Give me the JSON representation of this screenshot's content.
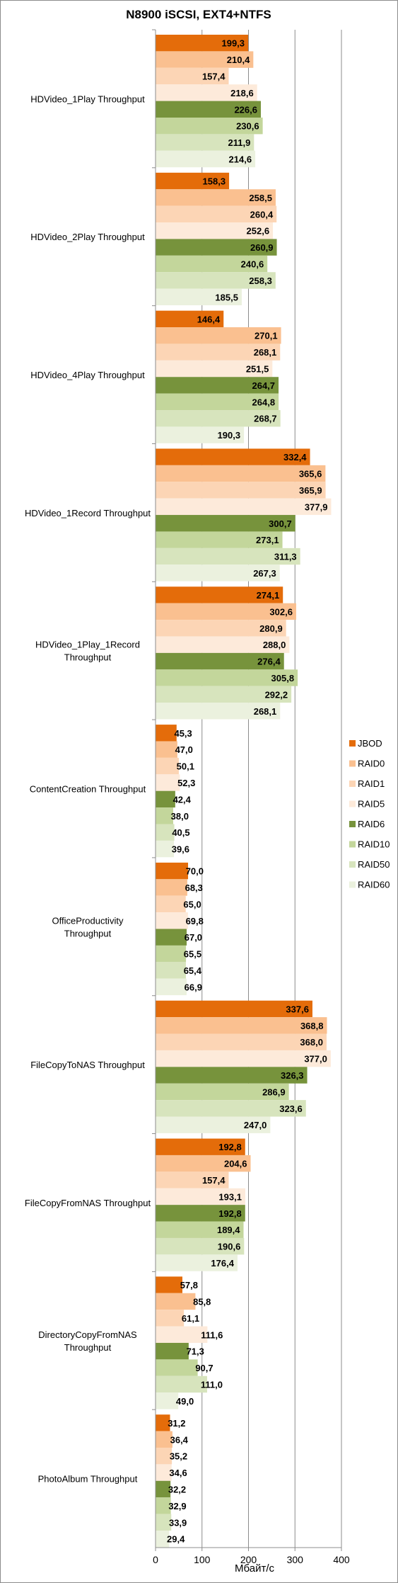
{
  "chart_data": {
    "type": "bar",
    "orientation": "horizontal",
    "title": "N8900 iSCSI, EXT4+NTFS",
    "xlabel": "Мбайт/с",
    "ylabel": "",
    "xlim": [
      0,
      400
    ],
    "x_ticks": [
      0,
      100,
      200,
      300,
      400
    ],
    "grid": true,
    "legend_position": "right",
    "categories": [
      "HDVideo_1Play Throughput",
      "HDVideo_2Play Throughput",
      "HDVideo_4Play Throughput",
      "HDVideo_1Record Throughput",
      "HDVideo_1Play_1Record Throughput",
      "ContentCreation Throughput",
      "OfficeProductivity Throughput",
      "FileCopyToNAS Throughput",
      "FileCopyFromNAS Throughput",
      "DirectoryCopyFromNAS Throughput",
      "PhotoAlbum Throughput"
    ],
    "series": [
      {
        "name": "JBOD",
        "color": "#e46c0a",
        "values": [
          199.3,
          158.3,
          146.4,
          332.4,
          274.1,
          45.3,
          70.0,
          337.6,
          192.8,
          57.8,
          31.2
        ],
        "labels": [
          "199,3",
          "158,3",
          "146,4",
          "332,4",
          "274,1",
          "45,3",
          "70,0",
          "337,6",
          "192,8",
          "57,8",
          "31,2"
        ]
      },
      {
        "name": "RAID0",
        "color": "#fac090",
        "values": [
          210.4,
          258.5,
          270.1,
          365.6,
          302.6,
          47.0,
          68.3,
          368.8,
          204.6,
          85.8,
          36.4
        ],
        "labels": [
          "210,4",
          "258,5",
          "270,1",
          "365,6",
          "302,6",
          "47,0",
          "68,3",
          "368,8",
          "204,6",
          "85,8",
          "36,4"
        ]
      },
      {
        "name": "RAID1",
        "color": "#fcd5b5",
        "values": [
          157.4,
          260.4,
          268.1,
          365.9,
          280.9,
          50.1,
          65.0,
          368.0,
          157.4,
          61.1,
          35.2
        ],
        "labels": [
          "157,4",
          "260,4",
          "268,1",
          "365,9",
          "280,9",
          "50,1",
          "65,0",
          "368,0",
          "157,4",
          "61,1",
          "35,2"
        ]
      },
      {
        "name": "RAID5",
        "color": "#fdeada",
        "values": [
          218.6,
          252.6,
          251.5,
          377.9,
          288.0,
          52.3,
          69.8,
          377.0,
          193.1,
          111.6,
          34.6
        ],
        "labels": [
          "218,6",
          "252,6",
          "251,5",
          "377,9",
          "288,0",
          "52,3",
          "69,8",
          "377,0",
          "193,1",
          "111,6",
          "34,6"
        ]
      },
      {
        "name": "RAID6",
        "color": "#77933c",
        "values": [
          226.6,
          260.9,
          264.7,
          300.7,
          276.4,
          42.4,
          67.0,
          326.3,
          192.8,
          71.3,
          32.2
        ],
        "labels": [
          "226,6",
          "260,9",
          "264,7",
          "300,7",
          "276,4",
          "42,4",
          "67,0",
          "326,3",
          "192,8",
          "71,3",
          "32,2"
        ]
      },
      {
        "name": "RAID10",
        "color": "#c3d69b",
        "values": [
          230.6,
          240.6,
          264.8,
          273.1,
          305.8,
          38.0,
          65.5,
          286.9,
          189.4,
          90.7,
          32.9
        ],
        "labels": [
          "230,6",
          "240,6",
          "264,8",
          "273,1",
          "305,8",
          "38,0",
          "65,5",
          "286,9",
          "189,4",
          "90,7",
          "32,9"
        ]
      },
      {
        "name": "RAID50",
        "color": "#d7e4bd",
        "values": [
          211.9,
          258.3,
          268.7,
          311.3,
          292.2,
          40.5,
          65.4,
          323.6,
          190.6,
          111.0,
          33.9
        ],
        "labels": [
          "211,9",
          "258,3",
          "268,7",
          "311,3",
          "292,2",
          "40,5",
          "65,4",
          "323,6",
          "190,6",
          "111,0",
          "33,9"
        ]
      },
      {
        "name": "RAID60",
        "color": "#ebf1de",
        "values": [
          214.6,
          185.5,
          190.3,
          267.3,
          268.1,
          39.6,
          66.9,
          247.0,
          176.4,
          49.0,
          29.4
        ],
        "labels": [
          "214,6",
          "185,5",
          "190,3",
          "267,3",
          "268,1",
          "39,6",
          "66,9",
          "247,0",
          "176,4",
          "49,0",
          "29,4"
        ]
      }
    ]
  }
}
